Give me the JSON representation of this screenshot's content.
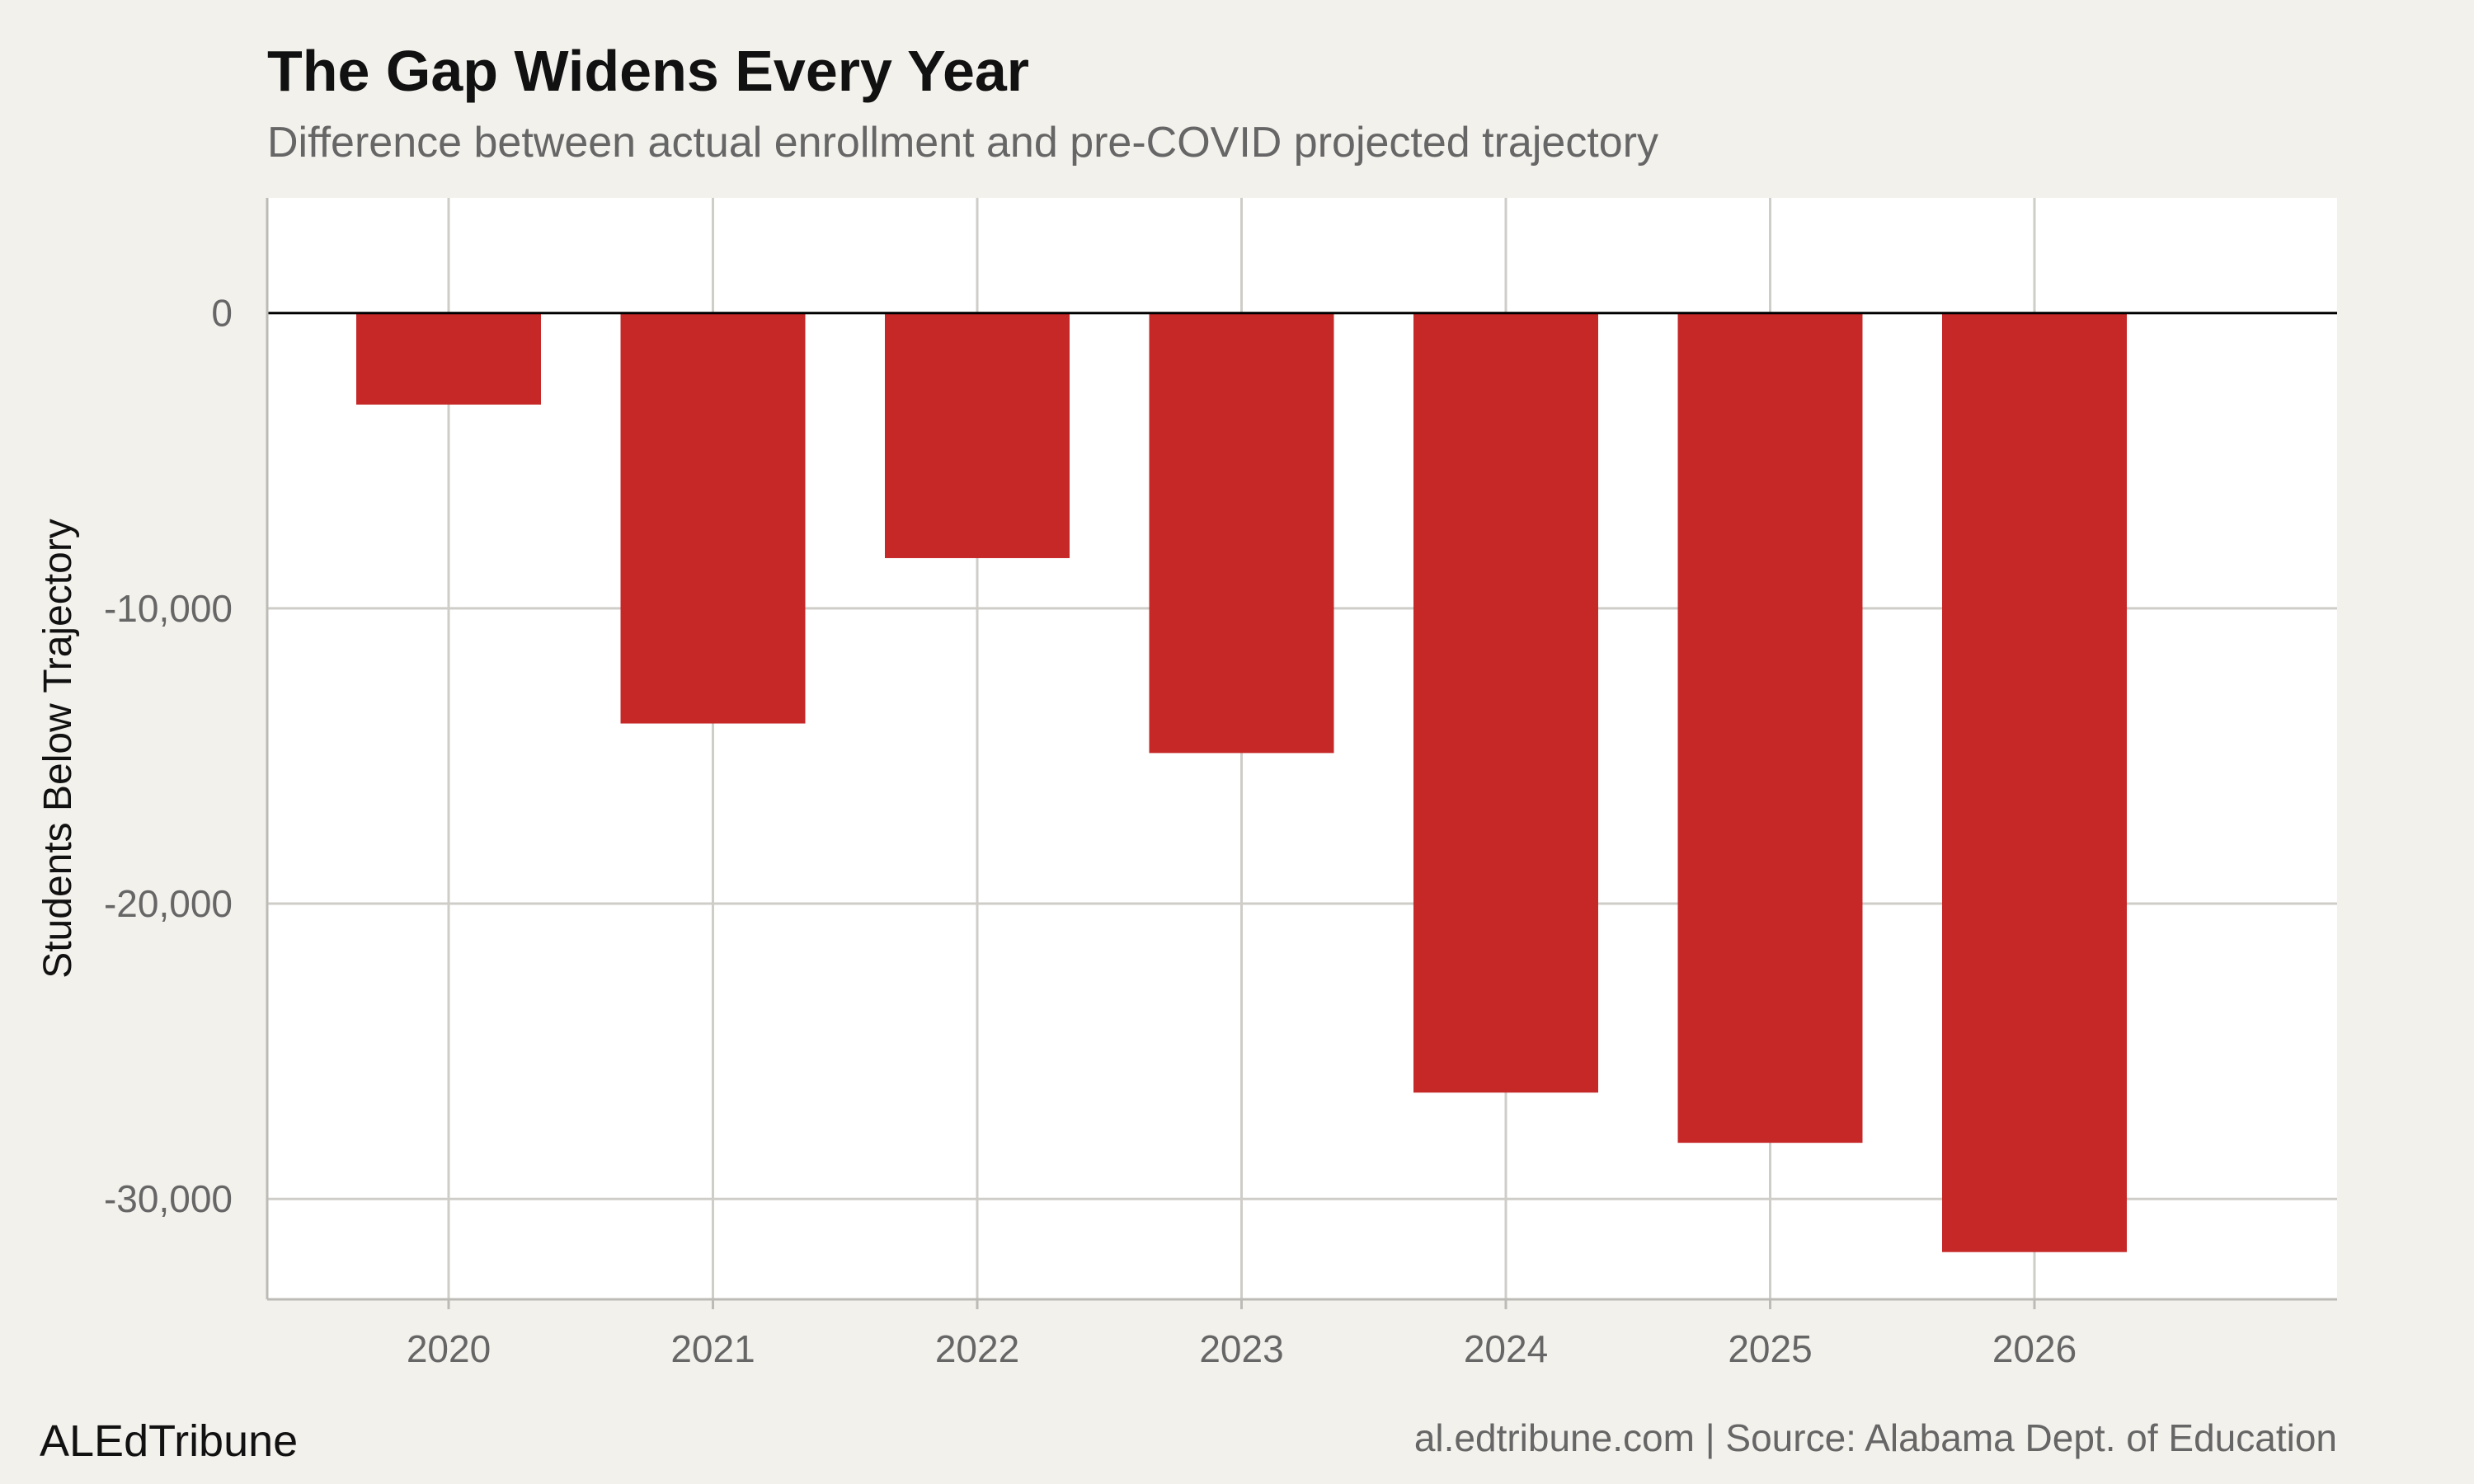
{
  "header": {
    "title": "The Gap Widens Every Year",
    "subtitle": "Difference between actual enrollment and pre-COVID projected trajectory"
  },
  "footer": {
    "brand": "ALEdTribune",
    "source": "al.edtribune.com | Source: Alabama Dept. of Education"
  },
  "colors": {
    "bar": "#c62828",
    "background": "#f3f1ec",
    "panel": "#ffffff",
    "grid": "#cfcdc8",
    "zero_line": "#000000"
  },
  "chart_data": {
    "type": "bar",
    "title": "The Gap Widens Every Year",
    "subtitle": "Difference between actual enrollment and pre-COVID projected trajectory",
    "xlabel": "",
    "ylabel": "Students Below Trajectory",
    "categories": [
      "2020",
      "2021",
      "2022",
      "2023",
      "2024",
      "2025",
      "2026"
    ],
    "values": [
      -3100,
      -13900,
      -8300,
      -14900,
      -26400,
      -28100,
      -31800
    ],
    "ylim": [
      -33400,
      3900
    ],
    "y_ticks": [
      0,
      -10000,
      -20000,
      -30000
    ],
    "y_tick_labels": [
      "0",
      "-10,000",
      "-20,000",
      "-30,000"
    ],
    "grid": true,
    "legend": "none"
  }
}
